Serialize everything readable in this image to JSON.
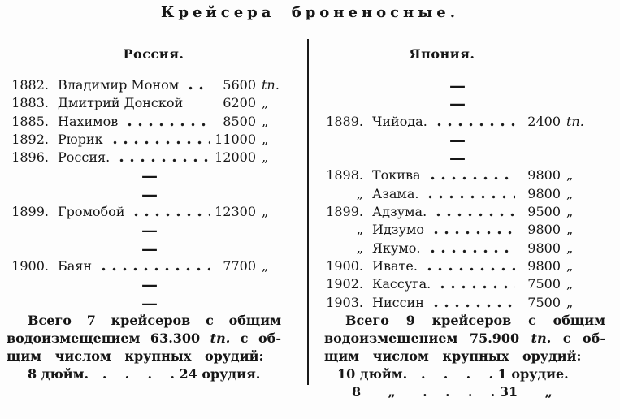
{
  "title": "Крейсера броненосные.",
  "dash_glyph": "—",
  "columns": {
    "russia": {
      "header": "Россия.",
      "rows": [
        {
          "year": "1882.",
          "name": "Владимир Моном",
          "tons": "5600",
          "unit": "tn.",
          "leaders": true
        },
        {
          "year": "1883.",
          "name": "Дмитрий Донской",
          "tons": "6200",
          "unit": "„",
          "leaders": false
        },
        {
          "year": "1885.",
          "name": "Нахимов",
          "tons": "8500",
          "unit": "„",
          "leaders": true
        },
        {
          "year": "1892.",
          "name": "Рюрик",
          "tons": "11000",
          "unit": "„",
          "leaders": true
        },
        {
          "year": "1896.",
          "name": "Россия.",
          "tons": "12000",
          "unit": "„",
          "leaders": true
        },
        {
          "dash": true
        },
        {
          "dash": true
        },
        {
          "year": "1899.",
          "name": "Громобой",
          "tons": "12300",
          "unit": "„",
          "leaders": true
        },
        {
          "dash": true
        },
        {
          "dash": true
        },
        {
          "year": "1900.",
          "name": "Баян",
          "tons": "7700",
          "unit": "„",
          "leaders": true
        },
        {
          "dash": true
        },
        {
          "dash": true
        }
      ],
      "summary": {
        "line1": "Всего 7 крейсеров с общим",
        "line2_pre": "водоизмещением 63.300 ",
        "line2_unit": "tn.",
        "line2_post": " с об-",
        "line3": "щим числом крупных орудий:",
        "guns1": "8 дюйм.   .    .    .    . 24 орудия."
      }
    },
    "japan": {
      "header": "Япония.",
      "rows": [
        {
          "dash": true
        },
        {
          "dash": true
        },
        {
          "year": "1889.",
          "name": "Чийода.",
          "tons": "2400",
          "unit": "tn.",
          "leaders": true
        },
        {
          "dash": true
        },
        {
          "dash": true
        },
        {
          "year": "1898.",
          "name": "Токива",
          "tons": "9800",
          "unit": "„",
          "leaders": true
        },
        {
          "year": "„",
          "name": "Азама.",
          "tons": "9800",
          "unit": "„",
          "leaders": true
        },
        {
          "year": "1899.",
          "name": "Адзума.",
          "tons": "9500",
          "unit": "„",
          "leaders": true
        },
        {
          "year": "„",
          "name": "Идзумо",
          "tons": "9800",
          "unit": "„",
          "leaders": true
        },
        {
          "year": "„",
          "name": "Якумо.",
          "tons": "9800",
          "unit": "„",
          "leaders": true
        },
        {
          "year": "1900.",
          "name": "Ивате.",
          "tons": "9800",
          "unit": "„",
          "leaders": true
        },
        {
          "year": "1902.",
          "name": "Кассуга.",
          "tons": "7500",
          "unit": "„",
          "leaders": true
        },
        {
          "year": "1903.",
          "name": "Ниссин",
          "tons": "7500",
          "unit": "„",
          "leaders": true
        }
      ],
      "summary": {
        "line1": "Всего 9 крейсеров с общим",
        "line2_pre": "водоизмещением 75.900 ",
        "line2_unit": "tn.",
        "line2_post": " с об-",
        "line3": "щим числом крупных орудий:",
        "guns1": "10 дюйм.   .    .    .    . 1 орудие.",
        "guns2": "8      „      .    .    .    . 31      „"
      }
    }
  }
}
